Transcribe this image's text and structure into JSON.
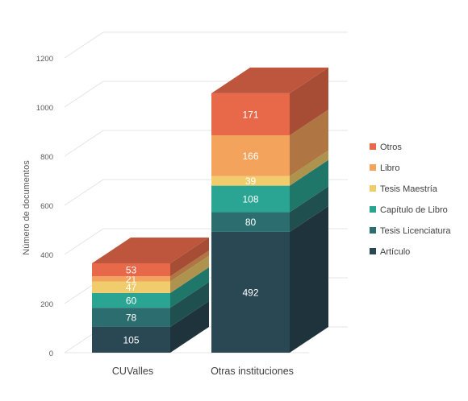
{
  "chart_data": {
    "type": "bar",
    "stacked": true,
    "three_d": true,
    "ylabel": "Número de documentos",
    "xlabel": "",
    "ylim": [
      0,
      1200
    ],
    "yticks": [
      "0",
      "200",
      "400",
      "600",
      "800",
      "1000",
      "1200"
    ],
    "grid": true,
    "legend_position": "right",
    "categories": [
      "CUValles",
      "Otras instituciones"
    ],
    "series": [
      {
        "name": "Artículo",
        "values": [
          105,
          492
        ],
        "color": "#2a4754",
        "label_color": "#ffffff"
      },
      {
        "name": "Tesis Licenciatura",
        "values": [
          78,
          80
        ],
        "color": "#2c6e6f",
        "label_color": "#ffffff"
      },
      {
        "name": "Capítulo de Libro",
        "values": [
          60,
          108
        ],
        "color": "#2ba593",
        "label_color": "#ffffff"
      },
      {
        "name": "Tesis Maestría",
        "values": [
          47,
          39
        ],
        "color": "#f1cc6c",
        "label_color": "#ffffff"
      },
      {
        "name": "Libro",
        "values": [
          21,
          166
        ],
        "color": "#f3a35c",
        "label_color": "#ffffff"
      },
      {
        "name": "Otros",
        "values": [
          53,
          171
        ],
        "color": "#e8694a",
        "label_color": "#ffffff"
      }
    ],
    "legend_order": [
      "Otros",
      "Libro",
      "Tesis Maestría",
      "Capítulo de Libro",
      "Tesis Licenciatura",
      "Artículo"
    ]
  }
}
